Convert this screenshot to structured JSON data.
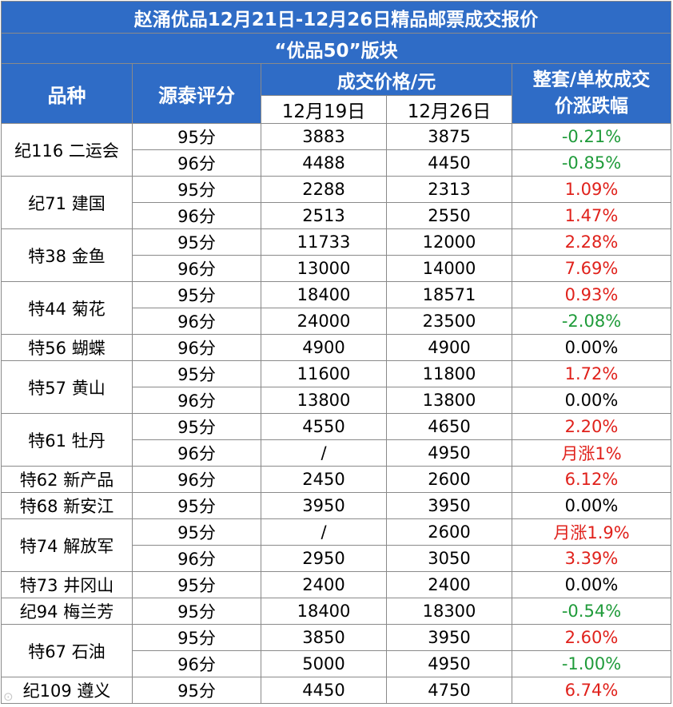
{
  "title": "赵涌优品12月21日-12月26日精品邮票成交报价",
  "subtitle": "“优品50”版块",
  "headers": {
    "variety": "品种",
    "score": "源泰评分",
    "price": "成交价格/元",
    "date1": "12月19日",
    "date2": "12月26日",
    "change_line1": "整套/单枚成交",
    "change_line2": "价涨跌幅"
  },
  "colors": {
    "header_bg": "#2f6cc6",
    "up": "#e0211b",
    "down": "#1f9b3a"
  },
  "rows": [
    {
      "variety": "纪116 二运会",
      "span": 2,
      "score": "95分",
      "p1": "3883",
      "p2": "3875",
      "change": "-0.21%",
      "trend": "down"
    },
    {
      "score": "96分",
      "p1": "4488",
      "p2": "4450",
      "change": "-0.85%",
      "trend": "down"
    },
    {
      "variety": "纪71 建国",
      "span": 2,
      "score": "95分",
      "p1": "2288",
      "p2": "2313",
      "change": "1.09%",
      "trend": "up"
    },
    {
      "score": "96分",
      "p1": "2513",
      "p2": "2550",
      "change": "1.47%",
      "trend": "up"
    },
    {
      "variety": "特38 金鱼",
      "span": 2,
      "score": "95分",
      "p1": "11733",
      "p2": "12000",
      "change": "2.28%",
      "trend": "up"
    },
    {
      "score": "96分",
      "p1": "13000",
      "p2": "14000",
      "change": "7.69%",
      "trend": "up"
    },
    {
      "variety": "特44 菊花",
      "span": 2,
      "score": "95分",
      "p1": "18400",
      "p2": "18571",
      "change": "0.93%",
      "trend": "up"
    },
    {
      "score": "96分",
      "p1": "24000",
      "p2": "23500",
      "change": "-2.08%",
      "trend": "down"
    },
    {
      "variety": "特56 蝴蝶",
      "span": 1,
      "score": "96分",
      "p1": "4900",
      "p2": "4900",
      "change": "0.00%",
      "trend": "flat"
    },
    {
      "variety": "特57 黄山",
      "span": 2,
      "score": "95分",
      "p1": "11600",
      "p2": "11800",
      "change": "1.72%",
      "trend": "up"
    },
    {
      "score": "96分",
      "p1": "13800",
      "p2": "13800",
      "change": "0.00%",
      "trend": "flat"
    },
    {
      "variety": "特61 牡丹",
      "span": 2,
      "score": "95分",
      "p1": "4550",
      "p2": "4650",
      "change": "2.20%",
      "trend": "up"
    },
    {
      "score": "96分",
      "p1": "/",
      "p2": "4950",
      "change": "月涨1%",
      "trend": "up"
    },
    {
      "variety": "特62 新产品",
      "span": 1,
      "score": "96分",
      "p1": "2450",
      "p2": "2600",
      "change": "6.12%",
      "trend": "up"
    },
    {
      "variety": "特68 新安江",
      "span": 1,
      "score": "95分",
      "p1": "3950",
      "p2": "3950",
      "change": "0.00%",
      "trend": "flat"
    },
    {
      "variety": "特74 解放军",
      "span": 2,
      "score": "95分",
      "p1": "/",
      "p2": "2600",
      "change": "月涨1.9%",
      "trend": "up"
    },
    {
      "score": "96分",
      "p1": "2950",
      "p2": "3050",
      "change": "3.39%",
      "trend": "up"
    },
    {
      "variety": "特73 井冈山",
      "span": 1,
      "score": "95分",
      "p1": "2400",
      "p2": "2400",
      "change": "0.00%",
      "trend": "flat"
    },
    {
      "variety": "纪94 梅兰芳",
      "span": 1,
      "score": "95分",
      "p1": "18400",
      "p2": "18300",
      "change": "-0.54%",
      "trend": "down"
    },
    {
      "variety": "特67 石油",
      "span": 2,
      "score": "95分",
      "p1": "3850",
      "p2": "3950",
      "change": "2.60%",
      "trend": "up"
    },
    {
      "score": "96分",
      "p1": "5000",
      "p2": "4950",
      "change": "-1.00%",
      "trend": "down"
    },
    {
      "variety": "纪109 遵义",
      "span": 1,
      "score": "95分",
      "p1": "4450",
      "p2": "4750",
      "change": "6.74%",
      "trend": "up"
    }
  ]
}
